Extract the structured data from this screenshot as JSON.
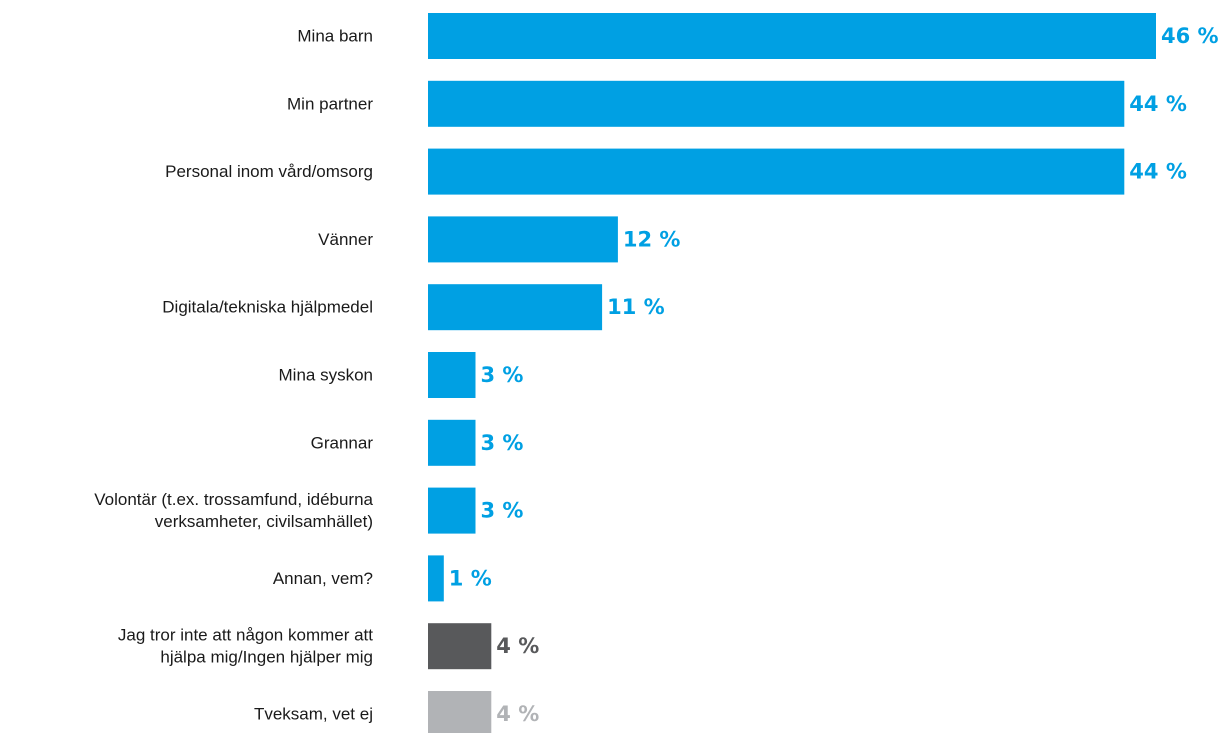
{
  "chart_data": {
    "type": "bar",
    "orientation": "horizontal",
    "title": "",
    "xlabel": "",
    "ylabel": "",
    "categories": [
      "Mina barn",
      "Min partner",
      "Personal inom vård/omsorg",
      "Vänner",
      "Digitala/tekniska hjälpmedel",
      "Mina syskon",
      "Grannar",
      "Volontär (t.ex. trossamfund, idéburna verksamheter, civilsamhället)",
      "Annan, vem?",
      "Jag tror inte att någon kommer att hjälpa mig/Ingen hjälper mig",
      "Tveksam, vet ej"
    ],
    "category_lines": [
      [
        "Mina barn"
      ],
      [
        "Min partner"
      ],
      [
        "Personal inom vård/omsorg"
      ],
      [
        "Vänner"
      ],
      [
        "Digitala/tekniska hjälpmedel"
      ],
      [
        "Mina syskon"
      ],
      [
        "Grannar"
      ],
      [
        "Volontär (t.ex. trossamfund, idéburna",
        "verksamheter, civilsamhället)"
      ],
      [
        "Annan, vem?"
      ],
      [
        "Jag tror inte att någon kommer att",
        "hjälpa mig/Ingen hjälper mig"
      ],
      [
        "Tveksam, vet ej"
      ]
    ],
    "values": [
      46,
      44,
      44,
      12,
      11,
      3,
      3,
      3,
      1,
      4,
      4
    ],
    "value_labels": [
      "46 %",
      "44 %",
      "44 %",
      "12 %",
      "11 %",
      "3 %",
      "3 %",
      "3 %",
      "1 %",
      "4 %",
      "4 %"
    ],
    "colors": [
      "#00a0e3",
      "#00a0e3",
      "#00a0e3",
      "#00a0e3",
      "#00a0e3",
      "#00a0e3",
      "#00a0e3",
      "#00a0e3",
      "#00a0e3",
      "#58595b",
      "#b1b3b6"
    ],
    "label_colors": [
      "#00a0e3",
      "#00a0e3",
      "#00a0e3",
      "#00a0e3",
      "#00a0e3",
      "#00a0e3",
      "#00a0e3",
      "#00a0e3",
      "#00a0e3",
      "#58595b",
      "#b1b3b6"
    ],
    "xlim": [
      0,
      46
    ],
    "grid": false,
    "legend": "none"
  }
}
